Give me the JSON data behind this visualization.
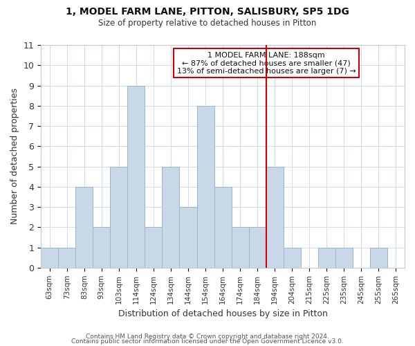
{
  "title": "1, MODEL FARM LANE, PITTON, SALISBURY, SP5 1DG",
  "subtitle": "Size of property relative to detached houses in Pitton",
  "xlabel": "Distribution of detached houses by size in Pitton",
  "ylabel": "Number of detached properties",
  "bar_labels": [
    "63sqm",
    "73sqm",
    "83sqm",
    "93sqm",
    "103sqm",
    "114sqm",
    "124sqm",
    "134sqm",
    "144sqm",
    "154sqm",
    "164sqm",
    "174sqm",
    "184sqm",
    "194sqm",
    "204sqm",
    "215sqm",
    "225sqm",
    "235sqm",
    "245sqm",
    "255sqm",
    "265sqm"
  ],
  "bar_values": [
    1,
    1,
    4,
    2,
    5,
    9,
    2,
    5,
    3,
    8,
    4,
    2,
    2,
    5,
    1,
    0,
    1,
    1,
    0,
    1,
    0
  ],
  "bar_color": "#c8d8e8",
  "bar_edge_color": "#9ab4cc",
  "grid_color": "#d0dce8",
  "vline_color": "#cc0000",
  "annotation_box_title": "1 MODEL FARM LANE: 188sqm",
  "annotation_line1": "← 87% of detached houses are smaller (47)",
  "annotation_line2": "13% of semi-detached houses are larger (7) →",
  "annotation_box_color": "#ffffff",
  "annotation_box_edge": "#cc0000",
  "ylim": [
    0,
    11
  ],
  "yticks": [
    0,
    1,
    2,
    3,
    4,
    5,
    6,
    7,
    8,
    9,
    10,
    11
  ],
  "footer1": "Contains HM Land Registry data © Crown copyright and database right 2024.",
  "footer2": "Contains public sector information licensed under the Open Government Licence v3.0."
}
